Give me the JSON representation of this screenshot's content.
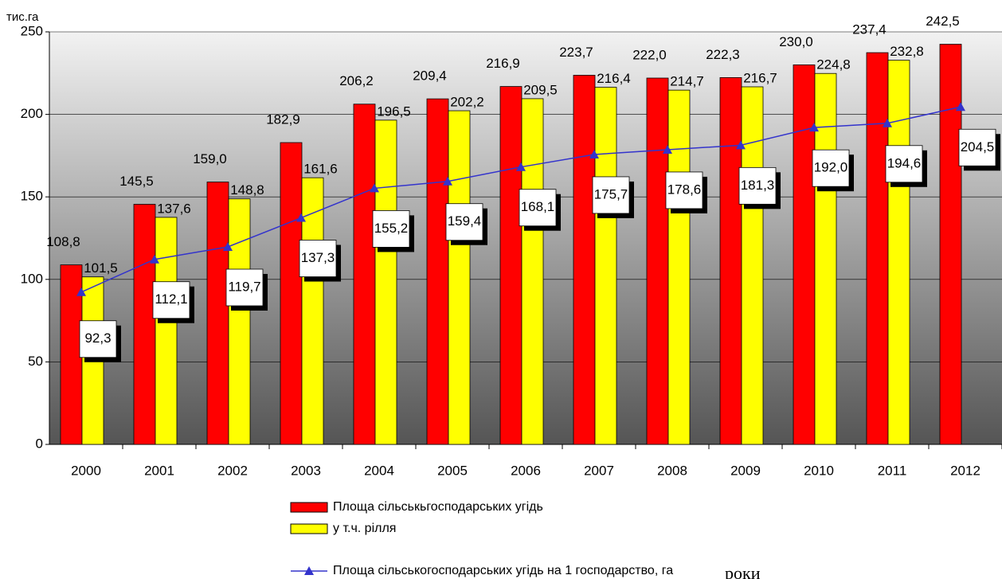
{
  "chart_data": {
    "type": "bar",
    "y_label": "тис.га",
    "x_label": "роки",
    "categories": [
      "2000",
      "2001",
      "2002",
      "2003",
      "2004",
      "2005",
      "2006",
      "2007",
      "2008",
      "2009",
      "2010",
      "2011",
      "2012"
    ],
    "ylim": [
      0,
      250
    ],
    "yticks": [
      0,
      50,
      100,
      150,
      200,
      250
    ],
    "grid": true,
    "series": [
      {
        "name": "Площа сільськьгосподарських угідь",
        "color": "#ff0000",
        "type": "bar",
        "values": [
          108.8,
          145.5,
          159.0,
          182.9,
          206.2,
          209.4,
          216.9,
          223.7,
          222.0,
          222.3,
          230.0,
          237.4,
          242.5
        ],
        "value_labels": [
          "108,8",
          "145,5",
          "159,0",
          "182,9",
          "206,2",
          "209,4",
          "216,9",
          "223,7",
          "222,0",
          "222,3",
          "230,0",
          "237,4",
          "242,5"
        ]
      },
      {
        "name": "у т.ч. рілля",
        "color": "#ffff00",
        "type": "bar",
        "values": [
          101.5,
          137.6,
          148.8,
          161.6,
          196.5,
          202.2,
          209.5,
          216.4,
          214.7,
          216.7,
          224.8,
          232.8,
          null
        ],
        "value_labels": [
          "101,5",
          "137,6",
          "148,8",
          "161,6",
          "196,5",
          "202,2",
          "209,5",
          "216,4",
          "214,7",
          "216,7",
          "224,8",
          "232,8",
          null
        ]
      },
      {
        "name": "Площа сільськогосподарських угідь на 1 господарство, га",
        "color": "#3333cc",
        "type": "line",
        "values": [
          92.3,
          112.1,
          119.7,
          137.3,
          155.2,
          159.4,
          168.1,
          175.7,
          178.6,
          181.3,
          192.0,
          194.6,
          204.5
        ],
        "value_labels": [
          "92,3",
          "112,1",
          "119,7",
          "137,3",
          "155,2",
          "159,4",
          "168,1",
          "175,7",
          "178,6",
          "181,3",
          "192,0",
          "194,6",
          "204,5"
        ]
      }
    ]
  }
}
